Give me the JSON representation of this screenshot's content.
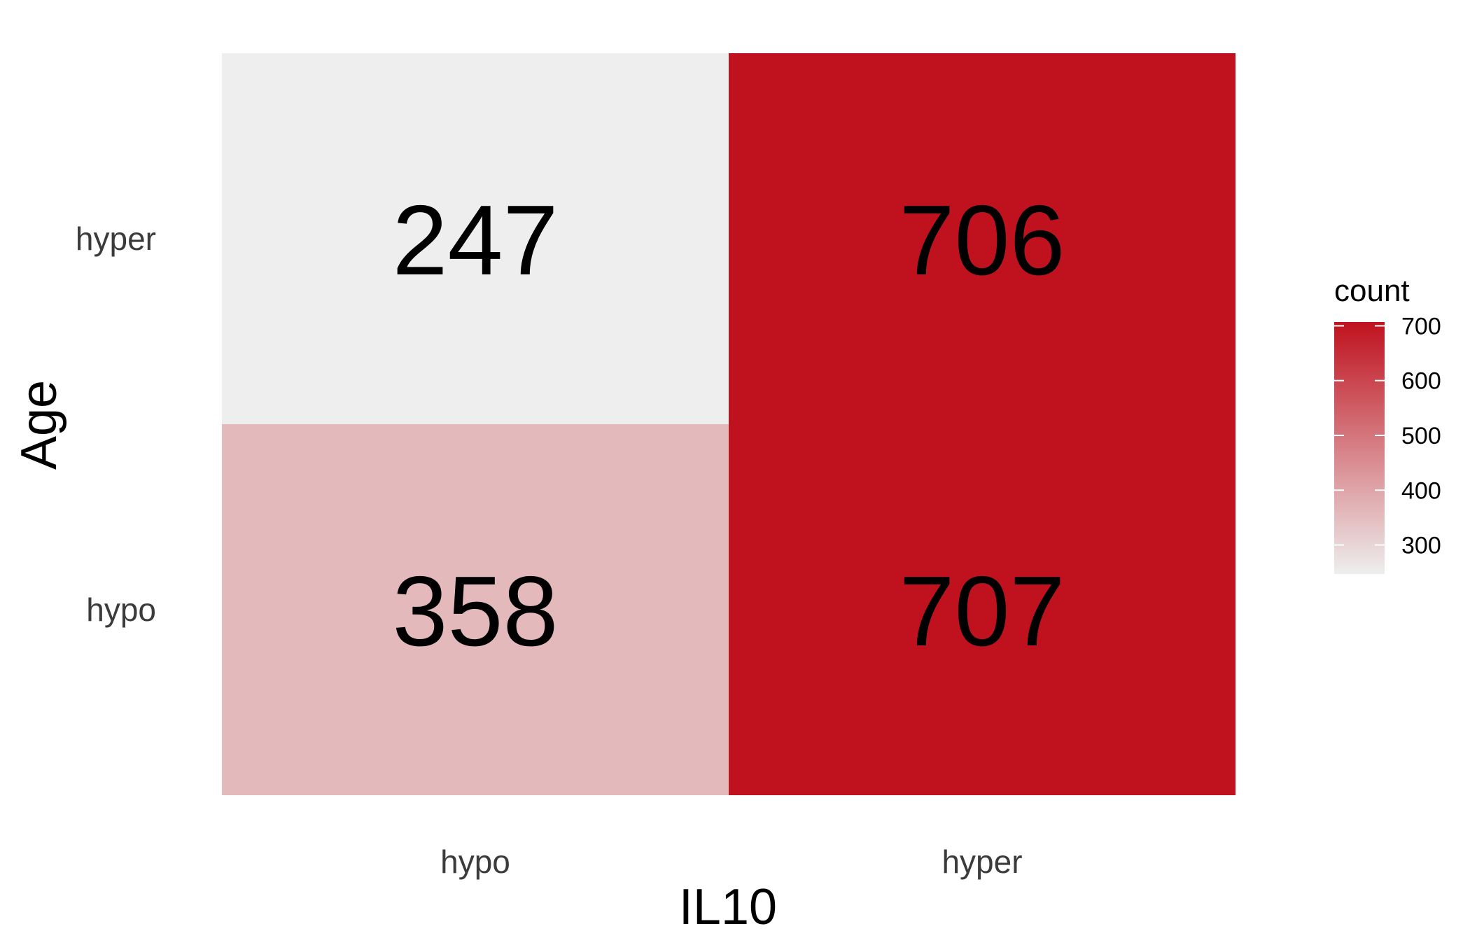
{
  "chart_data": {
    "type": "heatmap",
    "xlabel": "IL10",
    "ylabel": "Age",
    "x_categories": [
      "hypo",
      "hyper"
    ],
    "y_categories": [
      "hypo",
      "hyper"
    ],
    "cells": [
      {
        "x": "hypo",
        "y": "hyper",
        "value": 247
      },
      {
        "x": "hyper",
        "y": "hyper",
        "value": 706
      },
      {
        "x": "hypo",
        "y": "hypo",
        "value": 358
      },
      {
        "x": "hyper",
        "y": "hypo",
        "value": 707
      }
    ],
    "legend": {
      "title": "count",
      "ticks": [
        300,
        400,
        500,
        600,
        700
      ],
      "range": [
        247,
        707
      ],
      "low_color": "#eeeeee",
      "high_color": "#bf121e",
      "placement": "right"
    }
  }
}
